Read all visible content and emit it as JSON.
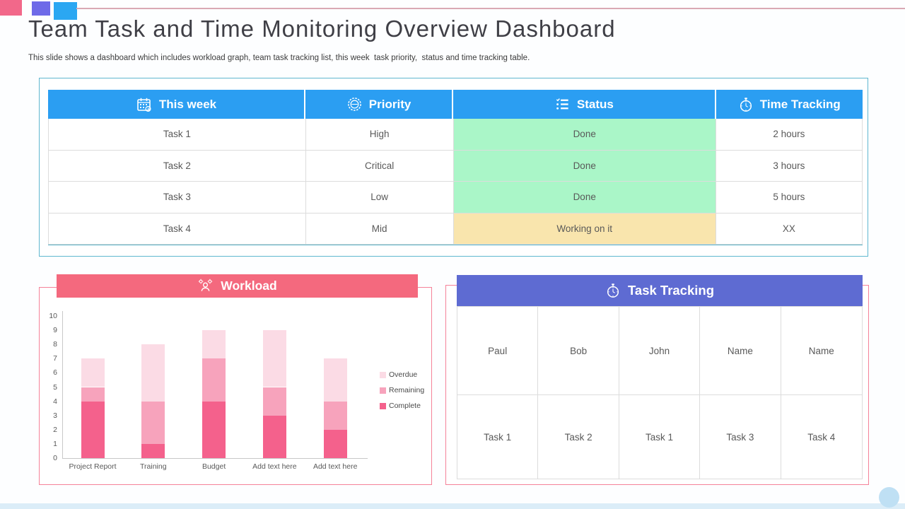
{
  "page": {
    "title": "Team Task and Time Monitoring Overview Dashboard",
    "subtitle": "This slide shows a dashboard which includes workload graph, team task tracking list, this week  task priority,  status and time tracking table."
  },
  "accent_colors": {
    "header_blue": "#2B9EF2",
    "banner_pink": "#F4697E",
    "banner_purple": "#5E6BD2",
    "status_done_green": "#AAF6C8",
    "status_working_yellow": "#F9E5AD",
    "deco_pink": "#F2688A",
    "deco_purple": "#6E6AE8",
    "deco_blue": "#2BA7F2",
    "box_teal_border": "#5FB7CF",
    "box_pink_border": "#F58299"
  },
  "week_table": {
    "columns": [
      {
        "label": "This week",
        "icon": "calendar-icon"
      },
      {
        "label": "Priority",
        "icon": "priority-stamp-icon"
      },
      {
        "label": "Status",
        "icon": "checklist-icon"
      },
      {
        "label": "Time Tracking",
        "icon": "stopwatch-icon"
      }
    ],
    "rows": [
      {
        "task": "Task 1",
        "priority": "High",
        "status": "Done",
        "time": "2 hours",
        "status_color": "#AAF6C8"
      },
      {
        "task": "Task 2",
        "priority": "Critical",
        "status": "Done",
        "time": "3 hours",
        "status_color": "#AAF6C8"
      },
      {
        "task": "Task 3",
        "priority": "Low",
        "status": "Done",
        "time": "5 hours",
        "status_color": "#AAF6C8"
      },
      {
        "task": "Task 4",
        "priority": "Mid",
        "status": "Working on it",
        "time": "XX",
        "status_color": "#F9E5AD"
      }
    ]
  },
  "workload": {
    "title": "Workload",
    "icon": "team-icon"
  },
  "task_tracking": {
    "title": "Task Tracking",
    "icon": "stopwatch-icon",
    "columns": [
      {
        "name": "Paul",
        "task": "Task 1"
      },
      {
        "name": "Bob",
        "task": "Task 2"
      },
      {
        "name": "John",
        "task": "Task 1"
      },
      {
        "name": "Name",
        "task": "Task 3"
      },
      {
        "name": "Name",
        "task": "Task 4"
      }
    ]
  },
  "chart_data": {
    "type": "bar",
    "stacked": true,
    "title": "Workload",
    "categories": [
      "Project Report",
      "Training",
      "Budget",
      "Add text here",
      "Add text here"
    ],
    "series": [
      {
        "name": "Complete",
        "color": "#F4618C",
        "values": [
          4,
          1,
          4,
          3,
          2
        ]
      },
      {
        "name": "Remaining",
        "color": "#F7A3BC",
        "values": [
          1,
          3,
          3,
          2,
          2
        ]
      },
      {
        "name": "Overdue",
        "color": "#FBDBE5",
        "values": [
          2,
          4,
          2,
          4,
          3
        ]
      }
    ],
    "ylim": [
      0,
      10
    ],
    "yticks": [
      0,
      1,
      2,
      3,
      4,
      5,
      6,
      7,
      8,
      9,
      10
    ],
    "legend": [
      "Overdue",
      "Remaining",
      "Complete"
    ],
    "legend_position": "right",
    "grid": false
  }
}
